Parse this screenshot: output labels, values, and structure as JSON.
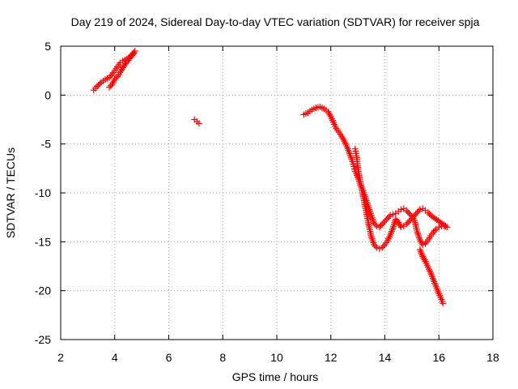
{
  "chart_data": {
    "type": "scatter",
    "title": "Day 219 of 2024, Sidereal Day-to-day VTEC variation (SDTVAR) for receiver spja",
    "xlabel": "GPS time / hours",
    "ylabel": "SDTVAR / TECUs",
    "xlim": [
      2,
      18
    ],
    "ylim": [
      -25,
      5
    ],
    "xticks": [
      2,
      4,
      6,
      8,
      10,
      12,
      14,
      16,
      18
    ],
    "yticks": [
      5,
      0,
      -5,
      -10,
      -15,
      -20,
      -25
    ],
    "grid": true,
    "marker": "+",
    "color": "#ff0000",
    "series": [
      {
        "name": "SDTVAR",
        "x": [
          3.22,
          3.35,
          3.5,
          3.65,
          3.8,
          3.9,
          4.0,
          4.1,
          4.2,
          4.3,
          4.45,
          4.6,
          4.7,
          4.75,
          4.6,
          4.45,
          4.3,
          4.2,
          4.1,
          4.0,
          3.9,
          3.8,
          6.95,
          7.05,
          7.12,
          11.0,
          11.15,
          11.3,
          11.45,
          11.6,
          11.75,
          11.9,
          12.0,
          12.1,
          12.2,
          12.3,
          12.4,
          12.5,
          12.6,
          12.7,
          12.8,
          12.85,
          12.9,
          13.0,
          13.05,
          13.1,
          13.2,
          13.3,
          13.4,
          13.5,
          13.6,
          13.7,
          13.8,
          13.9,
          14.0,
          14.1,
          14.2,
          14.3,
          14.4,
          14.5,
          14.6,
          14.7,
          14.8,
          14.9,
          15.0,
          15.1,
          15.2,
          15.3,
          15.4,
          15.5,
          15.6,
          15.7,
          15.8,
          15.9,
          16.0,
          16.1,
          16.2,
          16.3,
          15.7,
          15.6,
          15.5,
          15.4,
          15.3,
          15.2,
          15.1,
          15.0,
          14.9,
          14.8,
          14.7,
          14.6,
          14.5,
          14.4,
          14.3,
          14.2,
          14.1,
          14.0,
          13.9,
          13.8,
          13.7,
          13.6,
          13.5,
          13.4,
          13.3,
          13.2,
          13.1,
          13.0,
          12.95,
          12.9,
          15.3,
          15.4,
          15.5,
          15.6,
          15.7,
          15.8,
          15.9,
          16.0,
          16.1,
          16.15
        ],
        "y": [
          0.5,
          0.9,
          1.3,
          1.6,
          1.8,
          2.1,
          2.5,
          2.9,
          3.3,
          3.5,
          3.7,
          4.0,
          4.3,
          4.5,
          3.9,
          3.4,
          2.8,
          2.3,
          1.9,
          1.6,
          1.1,
          0.8,
          -2.5,
          -2.7,
          -2.9,
          -2.0,
          -1.8,
          -1.5,
          -1.3,
          -1.2,
          -1.4,
          -1.7,
          -2.2,
          -2.8,
          -3.4,
          -3.8,
          -4.2,
          -4.7,
          -5.3,
          -6.0,
          -6.8,
          -7.3,
          -7.8,
          -8.4,
          -8.8,
          -9.2,
          -9.8,
          -10.6,
          -11.5,
          -12.3,
          -13.1,
          -13.4,
          -13.5,
          -13.2,
          -12.9,
          -12.6,
          -12.3,
          -12.2,
          -12.1,
          -11.9,
          -11.7,
          -11.6,
          -11.8,
          -12.1,
          -12.4,
          -12.8,
          -14.0,
          -14.8,
          -15.3,
          -15.2,
          -14.8,
          -14.4,
          -14.0,
          -13.7,
          -13.5,
          -13.4,
          -13.4,
          -13.5,
          -12.3,
          -12.0,
          -11.8,
          -11.6,
          -11.7,
          -12.0,
          -12.3,
          -12.6,
          -12.9,
          -13.2,
          -13.4,
          -13.5,
          -13.0,
          -12.7,
          -13.6,
          -14.3,
          -14.9,
          -15.3,
          -15.6,
          -15.7,
          -15.6,
          -15.3,
          -14.5,
          -13.2,
          -11.8,
          -10.4,
          -9.0,
          -7.4,
          -6.2,
          -5.5,
          -15.8,
          -16.5,
          -17.0,
          -17.6,
          -18.2,
          -18.9,
          -19.6,
          -20.3,
          -20.9,
          -21.3
        ]
      }
    ]
  }
}
